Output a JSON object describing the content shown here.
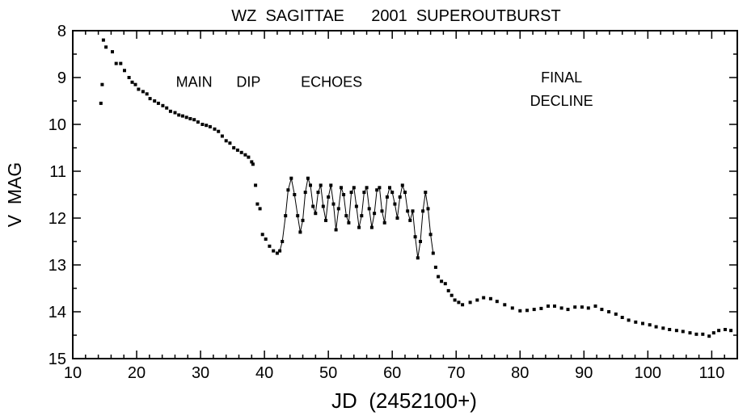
{
  "chart_data": {
    "type": "scatter",
    "title": "WZ  SAGITTAE      2001  SUPEROUTBURST",
    "xlabel": "JD  (2452100+)",
    "ylabel": "V  MAG",
    "xlim": [
      10,
      114
    ],
    "ylim": [
      15,
      8
    ],
    "y_inverted": true,
    "grid": false,
    "xticks": [
      10,
      20,
      30,
      40,
      50,
      60,
      70,
      80,
      90,
      100,
      110
    ],
    "yticks": [
      8,
      9,
      10,
      11,
      12,
      13,
      14,
      15
    ],
    "annotations": [
      {
        "text": "MAIN",
        "x": 29.0,
        "y": 9.2
      },
      {
        "text": "DIP",
        "x": 37.5,
        "y": 9.2
      },
      {
        "text": "ECHOES",
        "x": 50.5,
        "y": 9.2
      },
      {
        "text": "FINAL",
        "x": 86.5,
        "y": 9.1
      },
      {
        "text": "DECLINE",
        "x": 86.5,
        "y": 9.6
      }
    ],
    "series": [
      {
        "style": "points",
        "x": [
          14.4,
          14.6,
          14.8,
          15.2,
          16.2,
          16.8,
          17.5,
          18.1,
          18.8,
          19.3,
          19.8,
          20.3,
          21.0,
          21.6,
          22.1,
          22.8,
          23.4,
          24.1,
          24.7,
          25.3,
          26.0,
          26.6,
          27.2,
          27.8,
          28.4,
          29.0,
          29.6,
          30.3,
          30.9,
          31.5,
          32.2,
          32.8,
          33.4,
          34.0,
          34.6,
          35.2,
          35.8,
          36.4,
          37.0,
          37.5,
          38.0,
          38.2,
          38.6,
          38.9,
          39.3,
          39.7,
          40.2,
          40.8,
          41.4,
          42.0
        ],
        "y": [
          9.55,
          9.15,
          8.2,
          8.35,
          8.45,
          8.7,
          8.7,
          8.85,
          9.0,
          9.1,
          9.15,
          9.25,
          9.3,
          9.35,
          9.45,
          9.5,
          9.55,
          9.6,
          9.65,
          9.72,
          9.75,
          9.8,
          9.82,
          9.85,
          9.88,
          9.9,
          9.95,
          10.0,
          10.02,
          10.05,
          10.1,
          10.15,
          10.25,
          10.35,
          10.4,
          10.5,
          10.55,
          10.6,
          10.65,
          10.7,
          10.8,
          10.85,
          11.3,
          11.7,
          11.8,
          12.35,
          12.45,
          12.6,
          12.7,
          12.75
        ]
      },
      {
        "style": "line-points",
        "x": [
          42.4,
          42.8,
          43.3,
          43.7,
          44.2,
          44.7,
          45.2,
          45.6,
          46.0,
          46.4,
          46.8,
          47.2,
          47.6,
          48.0,
          48.4,
          48.8,
          49.2,
          49.6,
          50.0,
          50.4,
          50.8,
          51.2,
          51.6,
          52.0,
          52.4,
          52.8,
          53.2,
          53.6,
          54.0,
          54.4,
          54.8,
          55.2,
          55.6,
          56.0,
          56.4,
          56.8,
          57.2,
          57.6,
          58.0,
          58.4,
          58.8,
          59.2,
          59.6,
          60.0,
          60.4,
          60.8,
          61.2,
          61.6,
          62.0,
          62.4,
          62.8,
          63.2,
          63.6,
          64.0,
          64.4,
          64.8,
          65.2,
          65.6,
          66.0,
          66.4
        ],
        "y": [
          12.7,
          12.5,
          11.95,
          11.4,
          11.15,
          11.5,
          11.95,
          12.3,
          12.05,
          11.45,
          11.15,
          11.3,
          11.75,
          11.9,
          11.45,
          11.3,
          11.75,
          12.05,
          11.55,
          11.3,
          11.7,
          12.25,
          11.8,
          11.35,
          11.5,
          11.95,
          12.1,
          11.45,
          11.35,
          11.75,
          12.2,
          11.95,
          11.45,
          11.35,
          11.8,
          12.2,
          11.9,
          11.4,
          11.35,
          11.85,
          12.1,
          11.55,
          11.35,
          11.45,
          11.7,
          12.0,
          11.55,
          11.3,
          11.45,
          11.85,
          12.05,
          11.85,
          12.4,
          12.85,
          12.5,
          11.85,
          11.45,
          11.8,
          12.35,
          12.75
        ]
      },
      {
        "style": "points",
        "x": [
          66.8,
          67.2,
          67.7,
          68.3,
          68.8,
          69.3,
          69.8,
          70.4,
          71.0,
          72.2,
          73.3,
          74.3,
          75.4,
          76.4,
          77.6,
          78.8,
          80.0,
          81.1,
          82.2,
          83.3,
          84.4,
          85.4,
          86.5,
          87.5,
          88.6,
          89.7,
          90.7,
          91.8,
          92.8,
          93.9,
          95.0,
          96.0,
          97.0,
          98.1,
          99.2,
          100.3,
          101.3,
          102.4,
          103.4,
          104.5,
          105.5,
          106.6,
          107.6,
          108.6,
          109.6,
          110.3,
          111.1,
          112.1,
          113.0
        ],
        "y": [
          13.05,
          13.25,
          13.35,
          13.4,
          13.55,
          13.65,
          13.75,
          13.8,
          13.85,
          13.8,
          13.75,
          13.7,
          13.72,
          13.78,
          13.85,
          13.92,
          13.98,
          13.97,
          13.95,
          13.93,
          13.88,
          13.88,
          13.92,
          13.95,
          13.9,
          13.9,
          13.92,
          13.88,
          13.95,
          14.0,
          14.05,
          14.12,
          14.18,
          14.22,
          14.25,
          14.28,
          14.32,
          14.35,
          14.38,
          14.4,
          14.42,
          14.45,
          14.48,
          14.48,
          14.52,
          14.45,
          14.4,
          14.38,
          14.4
        ]
      }
    ]
  }
}
